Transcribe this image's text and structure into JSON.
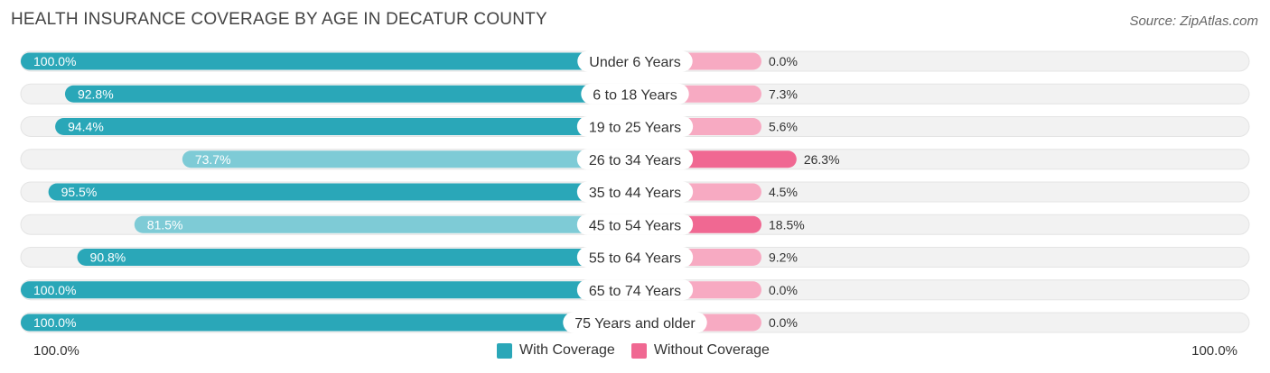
{
  "header": {
    "title": "HEALTH INSURANCE COVERAGE BY AGE IN DECATUR COUNTY",
    "source": "Source: ZipAtlas.com"
  },
  "colors": {
    "with_coverage": "#2aa7b8",
    "with_coverage_light": "#7ecbd6",
    "without_coverage": "#f06892",
    "without_coverage_light": "#f7aac2",
    "track": "#f1f1f1"
  },
  "chart_data": {
    "type": "bar",
    "orientation": "horizontal-diverging",
    "title": "HEALTH INSURANCE COVERAGE BY AGE IN DECATUR COUNTY",
    "categories": [
      "Under 6 Years",
      "6 to 18 Years",
      "19 to 25 Years",
      "26 to 34 Years",
      "35 to 44 Years",
      "45 to 54 Years",
      "55 to 64 Years",
      "65 to 74 Years",
      "75 Years and older"
    ],
    "series": [
      {
        "name": "With Coverage",
        "values": [
          100.0,
          92.8,
          94.4,
          73.7,
          95.5,
          81.5,
          90.8,
          100.0,
          100.0
        ],
        "labels": [
          "100.0%",
          "92.8%",
          "94.4%",
          "73.7%",
          "95.5%",
          "81.5%",
          "90.8%",
          "100.0%",
          "100.0%"
        ]
      },
      {
        "name": "Without Coverage",
        "values": [
          0.0,
          7.3,
          5.6,
          26.3,
          4.5,
          18.5,
          9.2,
          0.0,
          0.0
        ],
        "labels": [
          "0.0%",
          "7.3%",
          "5.6%",
          "26.3%",
          "4.5%",
          "18.5%",
          "9.2%",
          "0.0%",
          "0.0%"
        ]
      }
    ],
    "xlim": [
      0,
      100
    ],
    "axis_left_label": "100.0%",
    "axis_right_label": "100.0%",
    "legend": [
      "With Coverage",
      "Without Coverage"
    ],
    "legend_position": "bottom-center"
  }
}
